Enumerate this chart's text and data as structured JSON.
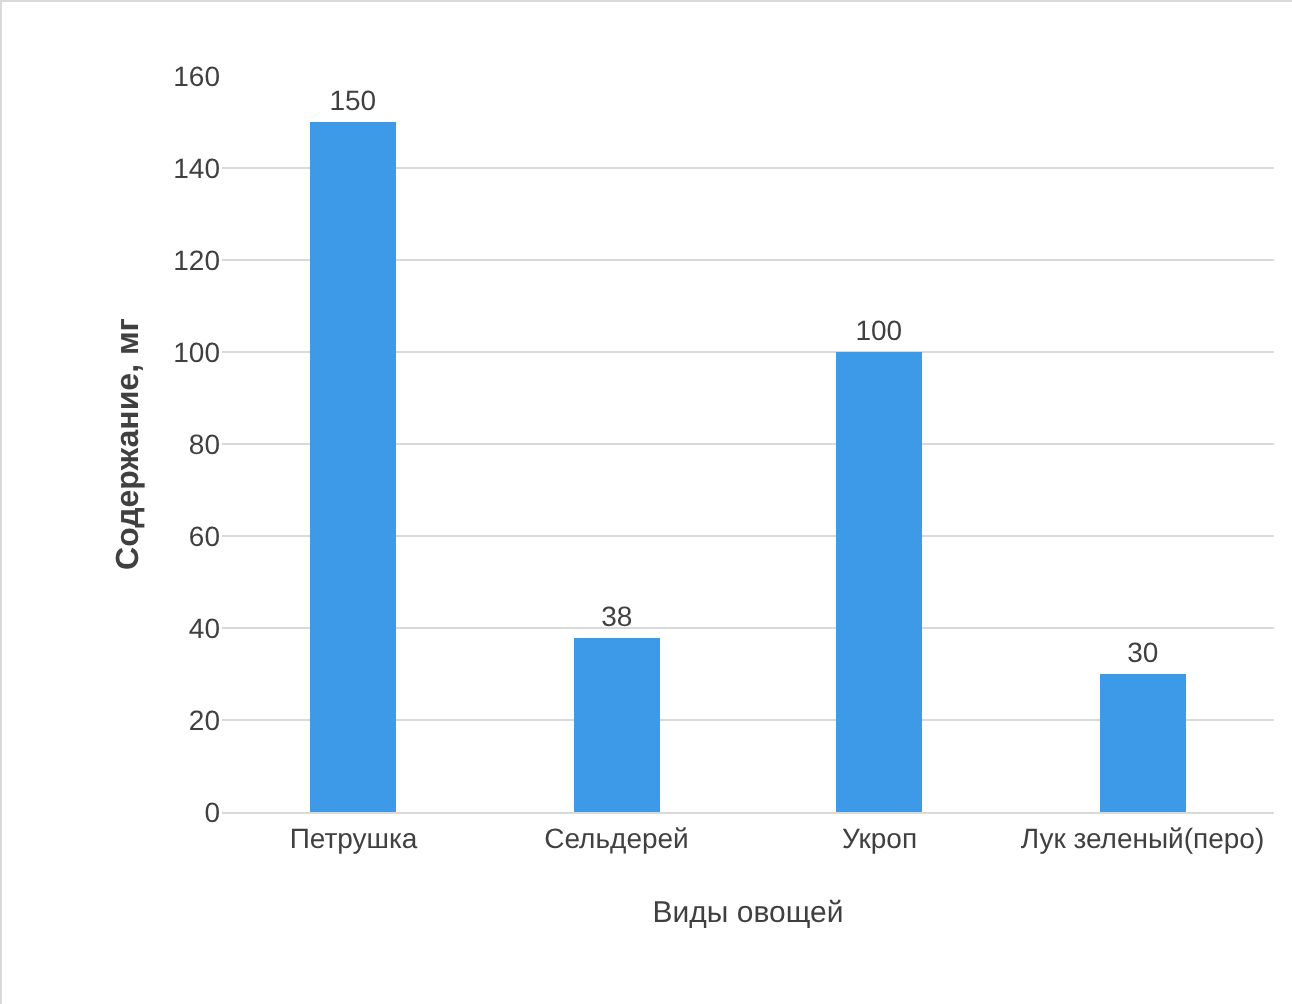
{
  "chart_data": {
    "type": "bar",
    "xlabel": "Виды овощей",
    "ylabel": "Содержание, мг",
    "categories": [
      "Петрушка",
      "Сельдерей",
      "Укроп",
      "Лук зеленый(перо)"
    ],
    "values": [
      150,
      38,
      100,
      30
    ],
    "color": "#3d9ae8",
    "ylim": [
      0,
      160
    ],
    "yticks": [
      0,
      20,
      40,
      60,
      80,
      100,
      120,
      140,
      160
    ],
    "grid": "y",
    "data_labels": true
  }
}
